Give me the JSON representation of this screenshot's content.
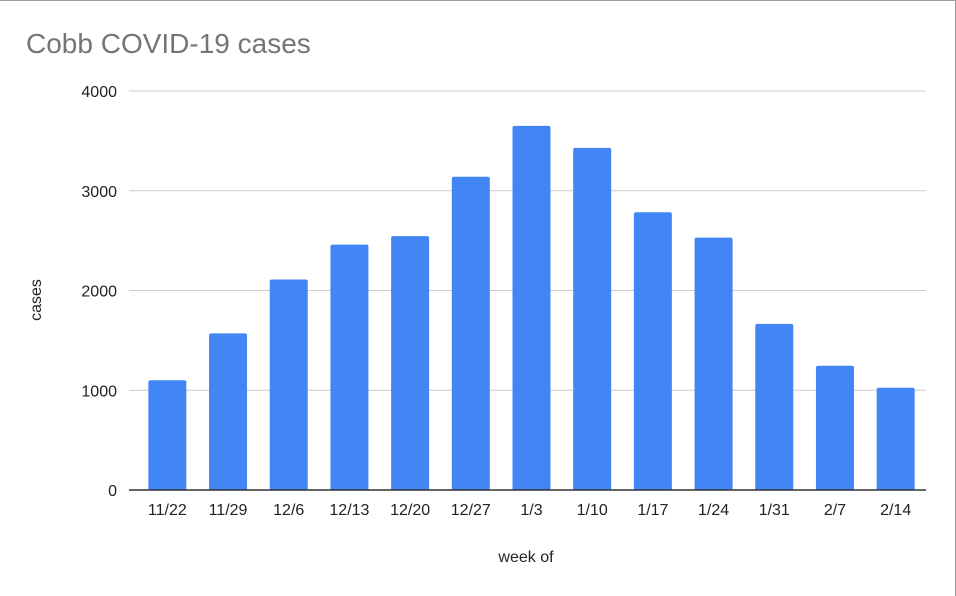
{
  "chart_data": {
    "type": "bar",
    "title": "Cobb COVID-19 cases",
    "xlabel": "week of",
    "ylabel": "cases",
    "categories": [
      "11/22",
      "11/29",
      "12/6",
      "12/13",
      "12/20",
      "12/27",
      "1/3",
      "1/10",
      "1/17",
      "1/24",
      "1/31",
      "2/7",
      "2/14"
    ],
    "values": [
      1100,
      1570,
      2110,
      2460,
      2545,
      3140,
      3650,
      3430,
      2785,
      2530,
      1665,
      1245,
      1025
    ],
    "ylim": [
      0,
      4000
    ],
    "yticks": [
      "0",
      "1000",
      "2000",
      "3000",
      "4000"
    ],
    "grid": true,
    "legend": "none",
    "bar_color": "#4285f4"
  }
}
